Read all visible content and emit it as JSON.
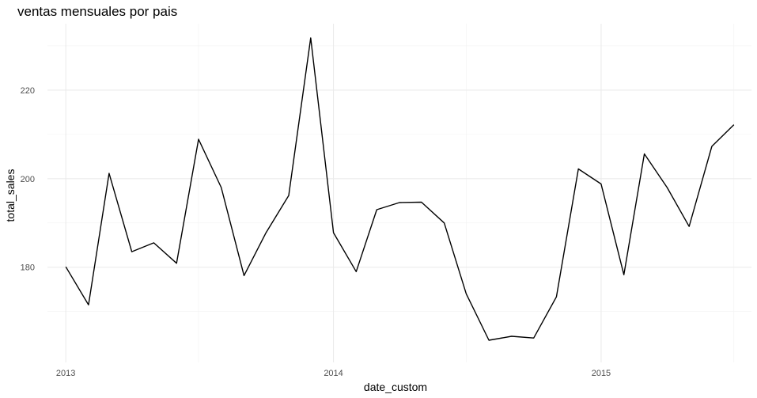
{
  "chart_data": {
    "type": "line",
    "title": "ventas mensuales por pais",
    "xlabel": "date_custom",
    "ylabel": "total_sales",
    "x_tick_labels": [
      "2013",
      "2014",
      "2015"
    ],
    "y_tick_labels": [
      "180",
      "200",
      "220"
    ],
    "y_ticks": [
      180,
      200,
      220
    ],
    "ylim": [
      158.5,
      235
    ],
    "xlim": [
      "2012-12-07",
      "2015-07-25"
    ],
    "grid": true,
    "legend": "none",
    "line_color": "#000000",
    "series": [
      {
        "x": [
          "2013-01-01",
          "2013-02-01",
          "2013-03-01",
          "2013-04-01",
          "2013-05-01",
          "2013-06-01",
          "2013-07-01",
          "2013-08-01",
          "2013-09-01",
          "2013-10-01",
          "2013-11-01",
          "2013-12-01",
          "2014-01-01",
          "2014-02-01",
          "2014-03-01",
          "2014-04-01",
          "2014-05-01",
          "2014-06-01",
          "2014-07-01",
          "2014-08-01",
          "2014-09-01",
          "2014-10-01",
          "2014-11-01",
          "2014-12-01",
          "2015-01-01",
          "2015-02-01",
          "2015-03-01",
          "2015-04-01",
          "2015-05-01",
          "2015-06-01",
          "2015-07-01"
        ],
        "values": [
          180.1,
          171.5,
          201.2,
          183.5,
          185.5,
          180.9,
          208.9,
          198.0,
          178.1,
          187.8,
          196.2,
          231.8,
          187.8,
          179.0,
          193.0,
          194.6,
          194.7,
          190.0,
          174.0,
          163.5,
          164.4,
          164.0,
          173.3,
          202.2,
          198.8,
          178.3,
          205.6,
          198.0,
          189.2,
          207.3,
          212.2
        ]
      }
    ]
  }
}
